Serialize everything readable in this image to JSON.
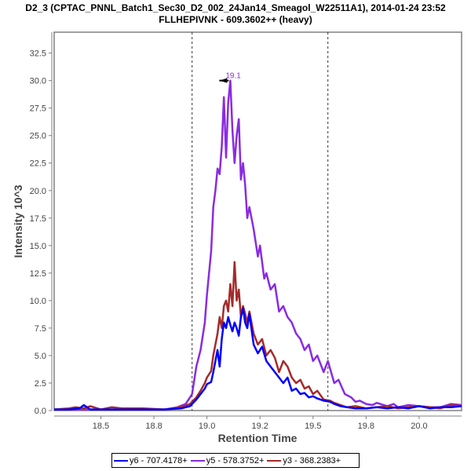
{
  "chart_data": {
    "type": "line",
    "title": "D2_3 (CPTAC_PNNL_Batch1_Sec30_D2_002_24Jan14_Smeagol_W22511A1), 2014-01-24 23:52",
    "subtitle": "FLLHEPIVNK - 609.3602++ (heavy)",
    "xlabel": "Retention Time",
    "ylabel": "Intensity 10^3",
    "xlim": [
      18.28,
      20.2
    ],
    "ylim": [
      0,
      34.4
    ],
    "x_ticks": [
      18.5,
      18.75,
      19.0,
      19.25,
      19.5,
      19.75,
      20.0
    ],
    "x_tick_labels": [
      "18.5",
      "18.8",
      "19.0",
      "19.2",
      "19.5",
      "19.8",
      "20.0"
    ],
    "y_ticks": [
      0,
      2.5,
      5,
      7.5,
      10,
      12.5,
      15,
      17.5,
      20,
      22.5,
      25,
      27.5,
      30,
      32.5
    ],
    "y_tick_labels": [
      "0.0",
      "2.5",
      "5.0",
      "7.5",
      "10.0",
      "12.5",
      "15.0",
      "17.5",
      "20.0",
      "22.5",
      "25.0",
      "27.5",
      "30.0",
      "32.5"
    ],
    "grid": false,
    "legend_position": "bottom",
    "integration_boundaries": [
      18.93,
      19.57
    ],
    "peak_annotation": {
      "x": 19.11,
      "y": 30.0,
      "label": "19.1",
      "color": "#8a2be2"
    },
    "series": [
      {
        "name": "y6 - 707.4178+",
        "color": "#0000ff",
        "x": [
          18.28,
          18.35,
          18.4,
          18.42,
          18.45,
          18.5,
          18.6,
          18.7,
          18.8,
          18.88,
          18.92,
          18.95,
          18.97,
          18.99,
          19.0,
          19.02,
          19.03,
          19.04,
          19.05,
          19.06,
          19.07,
          19.08,
          19.09,
          19.1,
          19.11,
          19.12,
          19.13,
          19.14,
          19.15,
          19.16,
          19.17,
          19.18,
          19.19,
          19.2,
          19.22,
          19.24,
          19.26,
          19.28,
          19.3,
          19.32,
          19.34,
          19.36,
          19.38,
          19.4,
          19.42,
          19.44,
          19.46,
          19.48,
          19.5,
          19.52,
          19.55,
          19.58,
          19.6,
          19.63,
          19.66,
          19.7,
          19.75,
          19.8,
          19.85,
          19.9,
          19.95,
          20.0,
          20.05,
          20.1,
          20.15,
          20.2
        ],
        "y": [
          0.1,
          0.1,
          0.2,
          0.5,
          0.1,
          0.1,
          0.1,
          0.1,
          0.1,
          0.2,
          0.4,
          1.0,
          1.5,
          2.0,
          2.4,
          2.6,
          3.5,
          4.5,
          5.5,
          4.0,
          6.5,
          8.0,
          7.5,
          8.5,
          7.8,
          7.2,
          8.0,
          7.5,
          6.8,
          8.5,
          9.3,
          8.0,
          7.5,
          8.8,
          6.0,
          5.2,
          5.8,
          4.5,
          4.0,
          3.5,
          3.0,
          2.5,
          3.0,
          1.8,
          2.0,
          1.5,
          1.6,
          1.2,
          1.3,
          1.1,
          0.9,
          0.8,
          0.6,
          0.4,
          0.3,
          0.2,
          0.2,
          0.3,
          0.2,
          0.3,
          0.2,
          0.4,
          0.2,
          0.3,
          0.3,
          0.4
        ]
      },
      {
        "name": "y5 - 578.3752+",
        "color": "#8a2be2",
        "x": [
          18.28,
          18.35,
          18.4,
          18.5,
          18.6,
          18.7,
          18.8,
          18.86,
          18.9,
          18.93,
          18.95,
          18.97,
          18.99,
          19.0,
          19.02,
          19.03,
          19.04,
          19.05,
          19.06,
          19.07,
          19.08,
          19.09,
          19.1,
          19.11,
          19.12,
          19.13,
          19.14,
          19.15,
          19.16,
          19.17,
          19.18,
          19.19,
          19.2,
          19.22,
          19.24,
          19.25,
          19.27,
          19.28,
          19.3,
          19.32,
          19.34,
          19.36,
          19.38,
          19.4,
          19.42,
          19.44,
          19.46,
          19.48,
          19.5,
          19.52,
          19.55,
          19.57,
          19.6,
          19.62,
          19.65,
          19.68,
          19.7,
          19.72,
          19.75,
          19.78,
          19.8,
          19.85,
          19.88,
          19.9,
          19.95,
          20.0,
          20.05,
          20.1,
          20.15,
          20.2
        ],
        "y": [
          0.1,
          0.1,
          0.1,
          0.1,
          0.1,
          0.1,
          0.1,
          0.3,
          0.6,
          1.5,
          4.0,
          5.5,
          8.0,
          10.5,
          14.5,
          18.5,
          20.0,
          22.0,
          21.5,
          24.0,
          28.5,
          23.0,
          28.0,
          30.0,
          25.5,
          22.5,
          25.0,
          26.5,
          21.0,
          22.5,
          20.5,
          17.5,
          18.5,
          16.5,
          14.0,
          15.0,
          12.0,
          12.5,
          11.0,
          11.5,
          9.0,
          9.5,
          8.5,
          8.0,
          7.0,
          6.5,
          5.5,
          6.0,
          4.5,
          5.0,
          3.5,
          4.5,
          2.5,
          2.8,
          1.5,
          1.2,
          0.8,
          0.9,
          0.6,
          0.5,
          0.7,
          0.4,
          0.6,
          0.3,
          0.5,
          0.4,
          0.3,
          0.3,
          0.6,
          0.5
        ]
      },
      {
        "name": "y3 - 368.2383+",
        "color": "#a52a2a",
        "x": [
          18.28,
          18.35,
          18.38,
          18.42,
          18.45,
          18.5,
          18.55,
          18.6,
          18.7,
          18.8,
          18.88,
          18.92,
          18.95,
          18.97,
          18.99,
          19.0,
          19.02,
          19.03,
          19.04,
          19.05,
          19.06,
          19.07,
          19.08,
          19.09,
          19.1,
          19.11,
          19.12,
          19.13,
          19.14,
          19.15,
          19.16,
          19.17,
          19.18,
          19.19,
          19.2,
          19.22,
          19.24,
          19.26,
          19.28,
          19.3,
          19.32,
          19.34,
          19.36,
          19.38,
          19.4,
          19.42,
          19.44,
          19.46,
          19.48,
          19.5,
          19.52,
          19.55,
          19.58,
          19.6,
          19.63,
          19.66,
          19.7,
          19.75,
          19.8,
          19.85,
          19.9,
          19.95,
          20.0,
          20.05,
          20.1,
          20.15,
          20.2
        ],
        "y": [
          0.1,
          0.2,
          0.3,
          0.2,
          0.4,
          0.1,
          0.3,
          0.2,
          0.2,
          0.1,
          0.3,
          0.6,
          1.2,
          1.8,
          2.5,
          3.0,
          3.6,
          5.0,
          6.0,
          7.0,
          8.5,
          7.5,
          9.5,
          10.0,
          9.0,
          11.5,
          9.5,
          13.5,
          10.0,
          11.0,
          8.5,
          9.5,
          8.8,
          8.0,
          9.0,
          7.0,
          6.0,
          6.5,
          5.0,
          5.5,
          4.8,
          3.5,
          4.5,
          4.0,
          3.0,
          2.5,
          2.8,
          2.0,
          2.2,
          1.5,
          1.8,
          1.0,
          0.9,
          0.7,
          0.5,
          0.3,
          0.4,
          0.2,
          0.3,
          0.4,
          0.2,
          0.3,
          0.4,
          0.3,
          0.2,
          0.5,
          0.4
        ]
      }
    ]
  }
}
